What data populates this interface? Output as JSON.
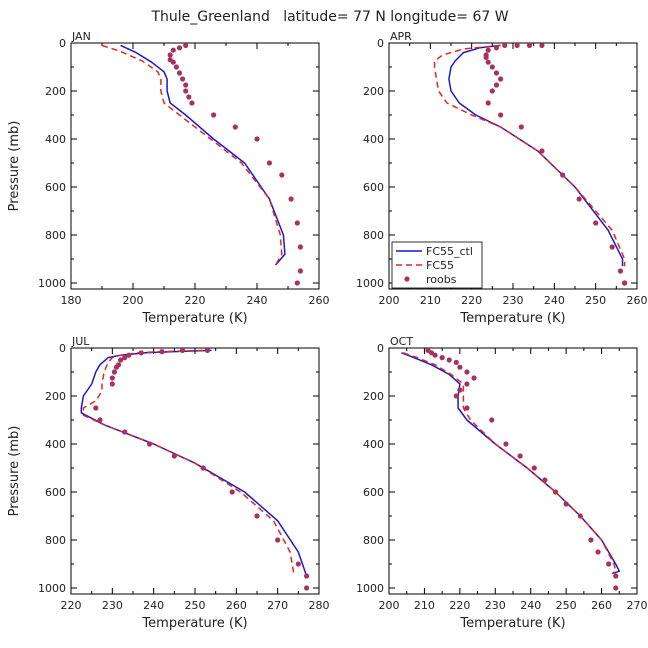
{
  "figure_title": "Thule_Greenland   latitude= 77 N longitude= 67 W",
  "legend": {
    "entries": [
      {
        "label": "FC55_ctl",
        "color": "#1a1acc",
        "style": "solid"
      },
      {
        "label": "FC55",
        "color": "#e8251d",
        "style": "dashed"
      },
      {
        "label": "roobs",
        "color": "#a8325e",
        "style": "dots"
      }
    ]
  },
  "chart_data": [
    {
      "type": "line",
      "title": "JAN",
      "xlabel": "Temperature (K)",
      "ylabel": "Pressure (mb)",
      "xlim": [
        180,
        260
      ],
      "ylim": [
        1025,
        0
      ],
      "xticks": [
        180,
        200,
        220,
        240,
        260
      ],
      "yticks": [
        0,
        200,
        400,
        600,
        800,
        1000
      ],
      "series": [
        {
          "name": "FC55_ctl",
          "x": [
            196,
            201,
            206,
            210,
            211,
            211,
            212,
            217,
            226,
            236,
            244,
            248.5,
            249,
            246
          ],
          "y": [
            10,
            40,
            80,
            120,
            150,
            200,
            250,
            300,
            400,
            500,
            650,
            800,
            880,
            925
          ]
        },
        {
          "name": "FC55",
          "x": [
            190,
            196,
            203,
            208,
            209,
            209,
            210,
            215,
            225,
            235,
            244,
            247.5,
            248,
            246
          ],
          "y": [
            10,
            35,
            75,
            120,
            150,
            200,
            250,
            300,
            400,
            500,
            650,
            800,
            880,
            925
          ]
        },
        {
          "name": "roobs",
          "x": [
            217,
            215,
            213,
            212,
            212,
            213,
            214,
            215,
            216,
            217,
            217,
            218,
            219,
            226,
            233,
            240,
            244,
            248,
            251,
            253,
            254,
            254,
            253
          ],
          "y": [
            10,
            20,
            30,
            50,
            70,
            80,
            100,
            125,
            150,
            175,
            200,
            225,
            250,
            300,
            350,
            400,
            500,
            550,
            650,
            750,
            850,
            950,
            1000
          ]
        }
      ]
    },
    {
      "type": "line",
      "title": "APR",
      "xlabel": "Temperature (K)",
      "ylabel": "",
      "xlim": [
        200,
        260
      ],
      "ylim": [
        1025,
        0
      ],
      "xticks": [
        200,
        210,
        220,
        230,
        240,
        250,
        260
      ],
      "yticks": [
        0,
        200,
        400,
        600,
        800,
        1000
      ],
      "series": [
        {
          "name": "FC55_ctl",
          "x": [
            227,
            222,
            218,
            216,
            215,
            214.5,
            215,
            217,
            221,
            227,
            236,
            245,
            253,
            256.5,
            256.5
          ],
          "y": [
            10,
            20,
            40,
            75,
            100,
            150,
            200,
            250,
            300,
            350,
            450,
            600,
            780,
            900,
            930
          ]
        },
        {
          "name": "FC55",
          "x": [
            227,
            218,
            213,
            211,
            211,
            211.5,
            212,
            214,
            220,
            227,
            236,
            245,
            254,
            257,
            257
          ],
          "y": [
            10,
            25,
            50,
            75,
            100,
            150,
            200,
            250,
            300,
            350,
            450,
            600,
            780,
            900,
            930
          ]
        },
        {
          "name": "roobs",
          "x": [
            237,
            234,
            231,
            228,
            226,
            224,
            223.5,
            223.5,
            224,
            225,
            226,
            227,
            226,
            225,
            224,
            227,
            232,
            237,
            242,
            246,
            250,
            254,
            256,
            257,
            257
          ],
          "y": [
            10,
            10,
            10,
            10,
            20,
            30,
            50,
            60,
            80,
            100,
            125,
            150,
            175,
            200,
            250,
            300,
            350,
            450,
            550,
            650,
            750,
            850,
            950,
            1000,
            1000
          ]
        }
      ]
    },
    {
      "type": "line",
      "title": "JUL",
      "xlabel": "Temperature (K)",
      "ylabel": "Pressure (mb)",
      "xlim": [
        220,
        280
      ],
      "ylim": [
        1025,
        0
      ],
      "xticks": [
        220,
        230,
        240,
        250,
        260,
        270,
        280
      ],
      "yticks": [
        0,
        200,
        400,
        600,
        800,
        1000
      ],
      "series": [
        {
          "name": "FC55_ctl",
          "x": [
            254,
            245,
            238,
            232,
            229,
            227,
            226,
            225,
            223,
            222.5,
            222.5,
            228,
            240,
            250,
            262,
            270,
            275,
            277
          ],
          "y": [
            10,
            15,
            20,
            30,
            40,
            70,
            100,
            150,
            200,
            250,
            270,
            320,
            400,
            480,
            600,
            720,
            850,
            950
          ]
        },
        {
          "name": "FC55",
          "x": [
            252,
            242,
            236,
            232,
            230,
            229,
            228,
            227.5,
            227.5,
            226,
            223,
            223,
            228,
            240,
            250,
            261,
            269,
            273,
            274
          ],
          "y": [
            10,
            15,
            20,
            30,
            40,
            60,
            100,
            150,
            180,
            220,
            250,
            280,
            320,
            400,
            480,
            600,
            720,
            850,
            950
          ]
        },
        {
          "name": "roobs",
          "x": [
            253,
            247,
            242,
            237,
            234,
            233,
            232,
            231.5,
            231,
            230.5,
            230,
            230,
            226,
            227,
            233,
            239,
            245,
            252,
            259,
            265,
            270,
            275,
            277,
            277
          ],
          "y": [
            10,
            10,
            15,
            20,
            30,
            40,
            50,
            70,
            80,
            100,
            125,
            150,
            250,
            300,
            350,
            400,
            450,
            500,
            600,
            700,
            800,
            900,
            950,
            1000
          ]
        }
      ]
    },
    {
      "type": "line",
      "title": "OCT",
      "xlabel": "Temperature (K)",
      "ylabel": "",
      "xlim": [
        200,
        270
      ],
      "ylim": [
        1025,
        0
      ],
      "xticks": [
        200,
        210,
        220,
        230,
        240,
        250,
        260,
        270
      ],
      "yticks": [
        0,
        200,
        400,
        600,
        800,
        1000
      ],
      "series": [
        {
          "name": "FC55_ctl",
          "x": [
            203.5,
            207,
            212,
            217,
            220,
            219.5,
            219.5,
            222,
            230,
            239,
            247,
            254,
            260,
            264,
            265,
            263
          ],
          "y": [
            20,
            40,
            70,
            110,
            150,
            200,
            250,
            300,
            400,
            500,
            600,
            700,
            800,
            900,
            930,
            940
          ]
        },
        {
          "name": "FC55",
          "x": [
            204,
            208,
            213,
            217.5,
            221,
            221,
            221,
            223,
            230,
            239,
            247,
            254,
            260,
            263.5,
            264,
            263
          ],
          "y": [
            20,
            40,
            70,
            110,
            150,
            200,
            250,
            300,
            400,
            500,
            600,
            700,
            800,
            900,
            930,
            940
          ]
        },
        {
          "name": "roobs",
          "x": [
            211,
            212,
            213,
            215,
            217,
            219,
            220,
            222,
            224,
            222,
            220,
            219,
            222,
            229,
            233,
            237,
            241,
            244,
            247,
            250,
            254,
            257,
            259,
            262,
            264,
            264
          ],
          "y": [
            10,
            20,
            30,
            40,
            50,
            60,
            80,
            100,
            125,
            150,
            175,
            200,
            250,
            300,
            400,
            450,
            500,
            550,
            600,
            650,
            700,
            800,
            850,
            900,
            950,
            1000
          ]
        }
      ]
    }
  ]
}
